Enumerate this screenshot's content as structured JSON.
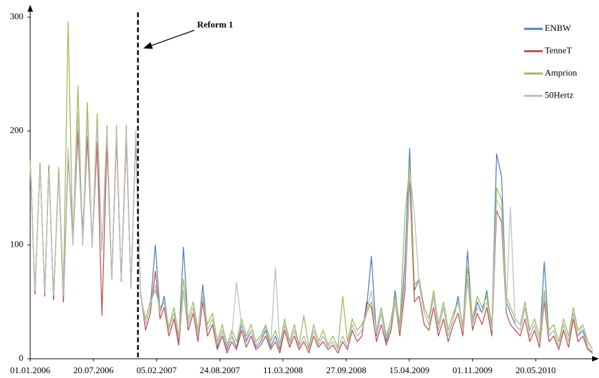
{
  "chart_data": {
    "type": "line",
    "x": [
      "2006-01-01",
      "2006-01-16",
      "2006-02-01",
      "2006-02-16",
      "2006-03-01",
      "2006-03-16",
      "2006-04-01",
      "2006-04-16",
      "2006-05-01",
      "2006-05-16",
      "2006-06-01",
      "2006-06-16",
      "2006-07-01",
      "2006-07-16",
      "2006-08-01",
      "2006-08-16",
      "2006-09-01",
      "2006-09-16",
      "2006-10-01",
      "2006-10-16",
      "2006-11-01",
      "2006-11-16",
      "2006-12-01",
      "2006-12-16",
      "2007-01-01",
      "2007-01-16",
      "2007-02-01",
      "2007-02-16",
      "2007-03-01",
      "2007-03-16",
      "2007-04-01",
      "2007-04-16",
      "2007-05-01",
      "2007-05-16",
      "2007-06-01",
      "2007-06-16",
      "2007-07-01",
      "2007-07-16",
      "2007-08-01",
      "2007-08-16",
      "2007-09-01",
      "2007-09-16",
      "2007-10-01",
      "2007-10-16",
      "2007-11-01",
      "2007-11-16",
      "2007-12-01",
      "2007-12-16",
      "2008-01-01",
      "2008-01-16",
      "2008-02-01",
      "2008-02-16",
      "2008-03-01",
      "2008-03-16",
      "2008-04-01",
      "2008-04-16",
      "2008-05-01",
      "2008-05-16",
      "2008-06-01",
      "2008-06-16",
      "2008-07-01",
      "2008-07-16",
      "2008-08-01",
      "2008-08-16",
      "2008-09-01",
      "2008-09-16",
      "2008-10-01",
      "2008-10-16",
      "2008-11-01",
      "2008-11-16",
      "2008-12-01",
      "2008-12-16",
      "2009-01-01",
      "2009-01-16",
      "2009-02-01",
      "2009-02-16",
      "2009-03-01",
      "2009-03-16",
      "2009-04-01",
      "2009-04-16",
      "2009-05-01",
      "2009-05-16",
      "2009-06-01",
      "2009-06-16",
      "2009-07-01",
      "2009-07-16",
      "2009-08-01",
      "2009-08-16",
      "2009-09-01",
      "2009-09-16",
      "2009-10-01",
      "2009-10-16",
      "2009-11-01",
      "2009-11-16",
      "2009-12-01",
      "2009-12-16",
      "2010-01-01",
      "2010-01-16",
      "2010-02-01",
      "2010-02-16",
      "2010-03-01",
      "2010-03-16",
      "2010-04-01",
      "2010-04-16",
      "2010-05-01",
      "2010-05-16",
      "2010-06-01",
      "2010-06-16",
      "2010-07-01",
      "2010-07-16",
      "2010-08-01",
      "2010-08-16",
      "2010-09-01",
      "2010-09-16",
      "2010-10-01",
      "2010-10-16",
      "2010-11-01",
      "2010-11-16"
    ],
    "series": [
      {
        "name": "ENBW",
        "color": "#4f81bd",
        "values": [
          175,
          57,
          172,
          55,
          170,
          52,
          165,
          50,
          180,
          100,
          200,
          102,
          195,
          100,
          190,
          98,
          190,
          70,
          195,
          68,
          195,
          62,
          195,
          58,
          30,
          45,
          100,
          40,
          55,
          25,
          40,
          15,
          98,
          30,
          45,
          20,
          65,
          25,
          35,
          10,
          25,
          8,
          20,
          10,
          30,
          15,
          25,
          10,
          15,
          25,
          10,
          20,
          8,
          30,
          12,
          25,
          10,
          20,
          8,
          25,
          12,
          20,
          10,
          15,
          8,
          20,
          10,
          30,
          20,
          25,
          45,
          90,
          20,
          40,
          15,
          30,
          60,
          25,
          85,
          185,
          60,
          70,
          40,
          30,
          55,
          25,
          45,
          20,
          35,
          55,
          25,
          95,
          30,
          50,
          40,
          60,
          25,
          180,
          160,
          50,
          40,
          30,
          25,
          45,
          20,
          30,
          15,
          85,
          20,
          25,
          10,
          30,
          15,
          40,
          20,
          25,
          10,
          5
        ]
      },
      {
        "name": "TenneT",
        "color": "#c0504d",
        "values": [
          175,
          57,
          172,
          55,
          170,
          52,
          165,
          50,
          180,
          110,
          200,
          112,
          195,
          103,
          190,
          38,
          190,
          70,
          195,
          68,
          195,
          62,
          195,
          58,
          25,
          40,
          77,
          35,
          45,
          20,
          35,
          12,
          60,
          25,
          40,
          15,
          50,
          20,
          30,
          8,
          20,
          5,
          15,
          8,
          25,
          10,
          20,
          8,
          12,
          20,
          8,
          15,
          5,
          25,
          10,
          20,
          8,
          15,
          5,
          20,
          10,
          15,
          8,
          12,
          5,
          15,
          8,
          25,
          15,
          20,
          50,
          45,
          15,
          30,
          12,
          25,
          50,
          20,
          60,
          160,
          50,
          55,
          30,
          25,
          45,
          20,
          35,
          15,
          30,
          40,
          20,
          70,
          25,
          40,
          30,
          45,
          20,
          130,
          120,
          40,
          30,
          25,
          20,
          35,
          15,
          25,
          10,
          50,
          15,
          20,
          8,
          25,
          10,
          35,
          15,
          20,
          8,
          5
        ]
      },
      {
        "name": "Amprion",
        "color": "#9bbb59",
        "values": [
          175,
          60,
          172,
          58,
          170,
          56,
          168,
          60,
          296,
          100,
          240,
          100,
          225,
          98,
          215,
          95,
          205,
          70,
          205,
          68,
          205,
          62,
          200,
          55,
          35,
          50,
          60,
          45,
          50,
          28,
          45,
          20,
          70,
          35,
          50,
          25,
          55,
          30,
          40,
          15,
          30,
          12,
          25,
          15,
          35,
          20,
          30,
          15,
          20,
          30,
          15,
          25,
          12,
          35,
          15,
          30,
          12,
          38,
          10,
          30,
          15,
          25,
          12,
          20,
          10,
          55,
          15,
          35,
          25,
          30,
          40,
          50,
          25,
          45,
          20,
          35,
          55,
          30,
          125,
          170,
          65,
          70,
          45,
          35,
          60,
          30,
          50,
          25,
          40,
          50,
          30,
          80,
          35,
          55,
          45,
          55,
          30,
          150,
          140,
          55,
          45,
          35,
          30,
          50,
          25,
          35,
          20,
          60,
          25,
          30,
          15,
          35,
          20,
          45,
          25,
          30,
          15,
          8
        ]
      },
      {
        "name": "50Hertz",
        "color": "#bfbfbf",
        "values": [
          170,
          60,
          168,
          58,
          165,
          56,
          160,
          55,
          185,
          100,
          215,
          102,
          210,
          100,
          205,
          95,
          200,
          72,
          200,
          70,
          200,
          64,
          200,
          57,
          30,
          45,
          65,
          40,
          50,
          25,
          40,
          18,
          60,
          30,
          45,
          20,
          55,
          25,
          35,
          12,
          25,
          10,
          20,
          67,
          30,
          18,
          25,
          12,
          18,
          28,
          12,
          80,
          10,
          30,
          12,
          25,
          10,
          20,
          8,
          25,
          12,
          20,
          10,
          15,
          8,
          20,
          10,
          30,
          20,
          25,
          40,
          60,
          22,
          40,
          18,
          30,
          50,
          25,
          70,
          165,
          127,
          65,
          40,
          30,
          55,
          25,
          45,
          20,
          35,
          50,
          25,
          70,
          30,
          45,
          40,
          50,
          25,
          140,
          130,
          45,
          133,
          30,
          25,
          45,
          20,
          30,
          15,
          55,
          20,
          25,
          10,
          30,
          15,
          40,
          20,
          30,
          10,
          6
        ]
      }
    ],
    "xlim": [
      "2006-01-01",
      "2010-11-21"
    ],
    "xticks": [
      {
        "value": "2006-01-01",
        "label": "01.01.2006"
      },
      {
        "value": "2006-07-20",
        "label": "20.07.2006"
      },
      {
        "value": "2007-02-05",
        "label": "05.02.2007"
      },
      {
        "value": "2007-08-24",
        "label": "24.08.2007"
      },
      {
        "value": "2008-03-11",
        "label": "11.03.2008"
      },
      {
        "value": "2008-09-27",
        "label": "27.09.2008"
      },
      {
        "value": "2009-04-15",
        "label": "15.04.2009"
      },
      {
        "value": "2009-11-01",
        "label": "01.11.2009"
      },
      {
        "value": "2010-05-20",
        "label": "20.05.2010"
      }
    ],
    "ylim": [
      0,
      300
    ],
    "yticks": [
      0,
      100,
      200,
      300
    ],
    "annotation": {
      "label": "Reform 1",
      "x": "2006-12-08"
    },
    "legend": "top-right",
    "grid": false
  }
}
